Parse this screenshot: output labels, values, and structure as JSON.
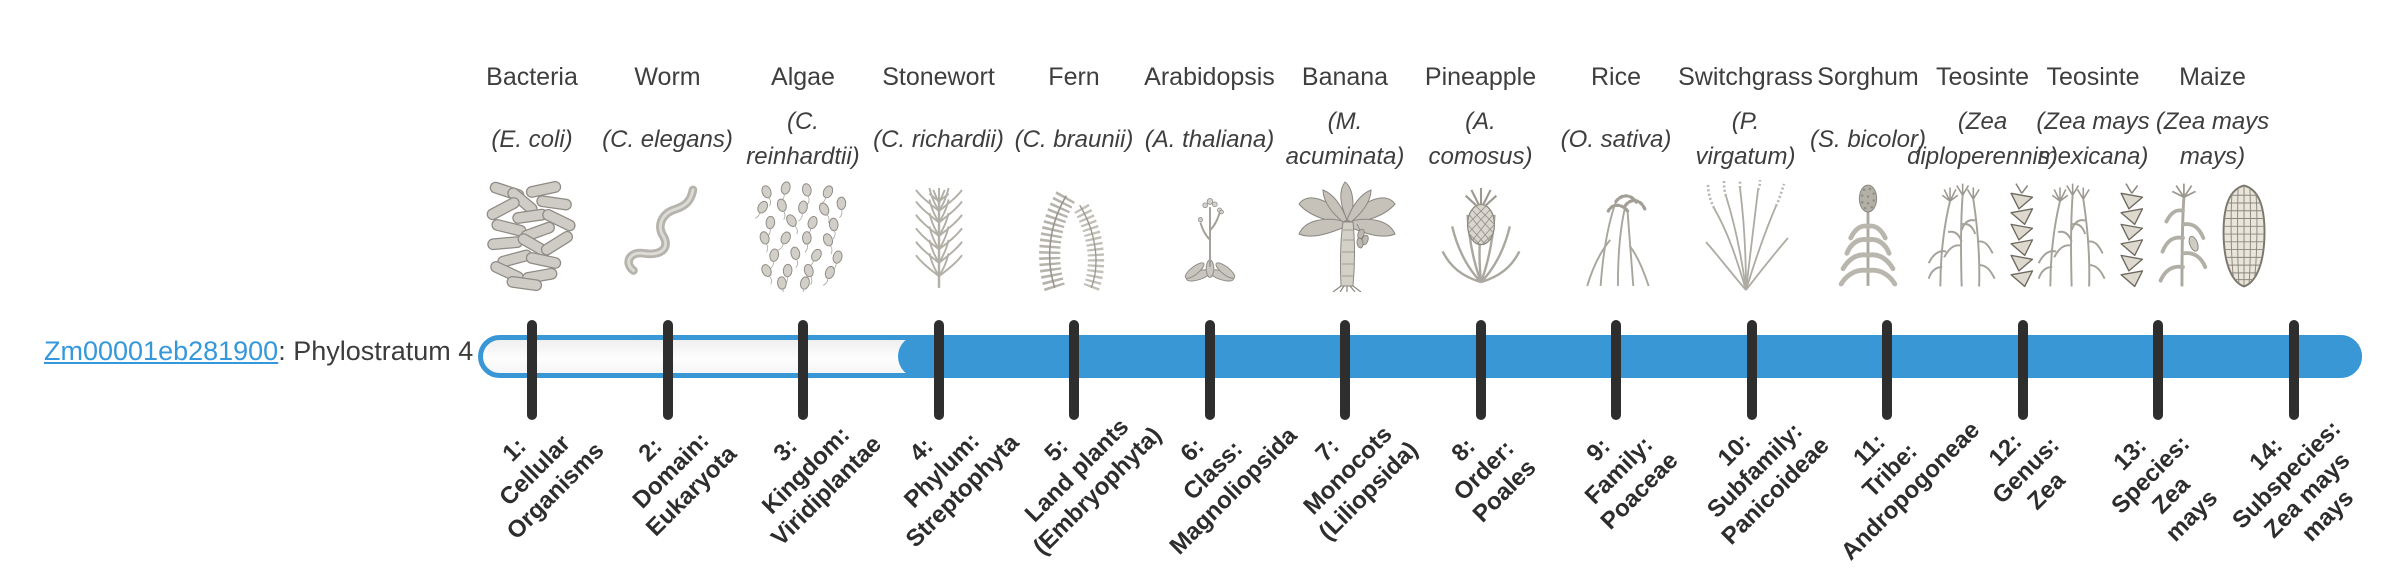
{
  "gene": {
    "id": "Zm00001eb281900",
    "suffix": ": Phylostratum 4",
    "phylostratum": 4
  },
  "timeline": {
    "accent_color": "#3a97d6",
    "tick_color": "#2e2e2e",
    "link_color": "#3598db",
    "filled_from_stratum": 4,
    "total_strata": 14
  },
  "chart_data": {
    "type": "table",
    "title": "Zm00001eb281900: Phylostratum 4",
    "x": [
      1,
      2,
      3,
      4,
      5,
      6,
      7,
      8,
      9,
      10,
      11,
      12,
      13,
      14
    ],
    "highlight_start": 4,
    "categories": [
      "Cellular Organisms",
      "Domain: Eukaryota",
      "Kingdom: Viridiplantae",
      "Phylum: Streptophyta",
      "Land plants (Embryophyta)",
      "Class: Magnoliopsida",
      "Monocots (Liliopsida)",
      "Order: Poales",
      "Family: Poaceae",
      "Subfamily: Panicoideae",
      "Tribe: Andropogoneae",
      "Genus: Zea",
      "Species: Zea mays",
      "Subspecies: Zea mays mays"
    ],
    "series": [
      {
        "name": "Phylostratum bar (filled strata 4-14)",
        "values": [
          0,
          0,
          0,
          1,
          1,
          1,
          1,
          1,
          1,
          1,
          1,
          1,
          1,
          1
        ]
      }
    ]
  },
  "strata": [
    {
      "number": 1,
      "organism": "Bacteria",
      "latin": "(E. coli)",
      "icon": "bacteria-icon",
      "tick_label": "1:\nCellular\nOrganisms"
    },
    {
      "number": 2,
      "organism": "Worm",
      "latin": "(C. elegans)",
      "icon": "worm-icon",
      "tick_label": "2:\nDomain:\nEukaryota"
    },
    {
      "number": 3,
      "organism": "Algae",
      "latin": "(C.\nreinhardtii)",
      "icon": "algae-icon",
      "tick_label": "3:\nKingdom:\nViridiplantae"
    },
    {
      "number": 4,
      "organism": "Stonewort",
      "latin": "(C. richardii)",
      "icon": "stonewort-icon",
      "tick_label": "4:\nPhylum:\nStreptophyta"
    },
    {
      "number": 5,
      "organism": "Fern",
      "latin": "(C. braunii)",
      "icon": "fern-icon",
      "tick_label": "5:\nLand plants\n(Embryophyta)"
    },
    {
      "number": 6,
      "organism": "Arabidopsis",
      "latin": "(A. thaliana)",
      "icon": "arabidopsis-icon",
      "tick_label": "6:\nClass:\nMagnoliopsida"
    },
    {
      "number": 7,
      "organism": "Banana",
      "latin": "(M.\nacuminata)",
      "icon": "banana-icon",
      "tick_label": "7:\nMonocots\n(Liliopsida)"
    },
    {
      "number": 8,
      "organism": "Pineapple",
      "latin": "(A.\ncomosus)",
      "icon": "pineapple-icon",
      "tick_label": "8:\nOrder:\nPoales"
    },
    {
      "number": 9,
      "organism": "Rice",
      "latin": "(O. sativa)",
      "icon": "rice-icon",
      "tick_label": "9:\nFamily:\nPoaceae"
    },
    {
      "number": 10,
      "organism": "Switchgrass",
      "latin": "(P.\nvirgatum)",
      "icon": "switchgrass-icon",
      "tick_label": "10:\nSubfamily:\nPanicoideae"
    },
    {
      "number": 11,
      "organism": "Sorghum",
      "latin": "(S. bicolor)",
      "icon": "sorghum-icon",
      "tick_label": "11:\nTribe:\nAndropogoneae"
    },
    {
      "number": 12,
      "organism": "Teosinte",
      "latin": "(Zea\ndiploperennis)",
      "icon": "teosinte-icon",
      "tick_label": "12:\nGenus:\nZea"
    },
    {
      "number": 13,
      "organism": "Teosinte",
      "latin": "(Zea mays\nmexicana)",
      "icon": "teosinte-icon",
      "tick_label": "13:\nSpecies:\nZea\nmays"
    },
    {
      "number": 14,
      "organism": "Maize",
      "latin": "(Zea mays\nmays)",
      "icon": "maize-icon",
      "tick_label": "14:\nSubspecies:\nZea mays\nmays"
    }
  ]
}
